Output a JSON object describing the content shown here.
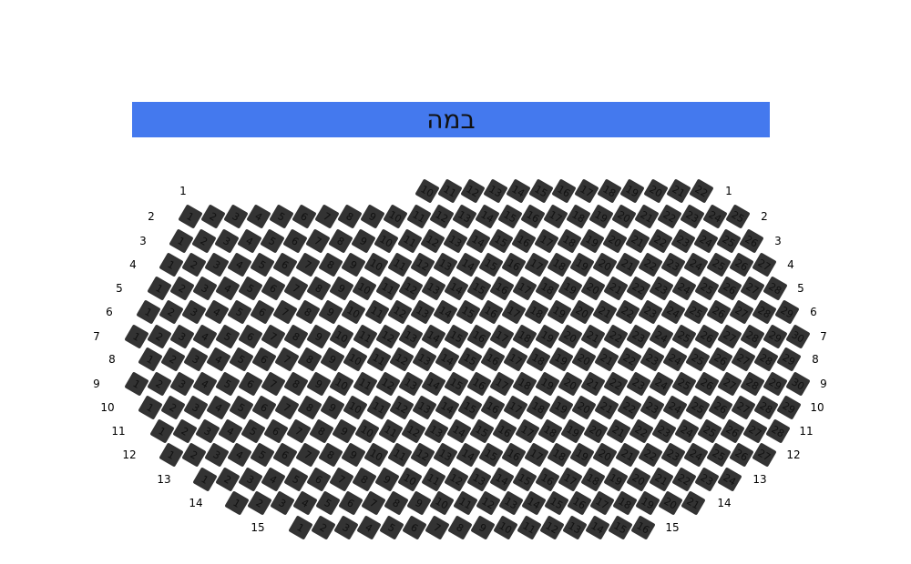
{
  "stage": {
    "label": "במה",
    "color": "#4479ee"
  },
  "seat_color": "#333333",
  "rows": [
    {
      "label": "1",
      "first_seat": 10,
      "last_seat": 22
    },
    {
      "label": "2",
      "first_seat": 1,
      "last_seat": 25
    },
    {
      "label": "3",
      "first_seat": 1,
      "last_seat": 26
    },
    {
      "label": "4",
      "first_seat": 1,
      "last_seat": 27
    },
    {
      "label": "5",
      "first_seat": 1,
      "last_seat": 28
    },
    {
      "label": "6",
      "first_seat": 1,
      "last_seat": 29
    },
    {
      "label": "7",
      "first_seat": 1,
      "last_seat": 30
    },
    {
      "label": "8",
      "first_seat": 1,
      "last_seat": 29
    },
    {
      "label": "9",
      "first_seat": 1,
      "last_seat": 30
    },
    {
      "label": "10",
      "first_seat": 1,
      "last_seat": 29
    },
    {
      "label": "11",
      "first_seat": 1,
      "last_seat": 28
    },
    {
      "label": "12",
      "first_seat": 1,
      "last_seat": 27
    },
    {
      "label": "13",
      "first_seat": 1,
      "last_seat": 24
    },
    {
      "label": "14",
      "first_seat": 1,
      "last_seat": 21
    },
    {
      "label": "15",
      "first_seat": 1,
      "last_seat": 16
    }
  ]
}
